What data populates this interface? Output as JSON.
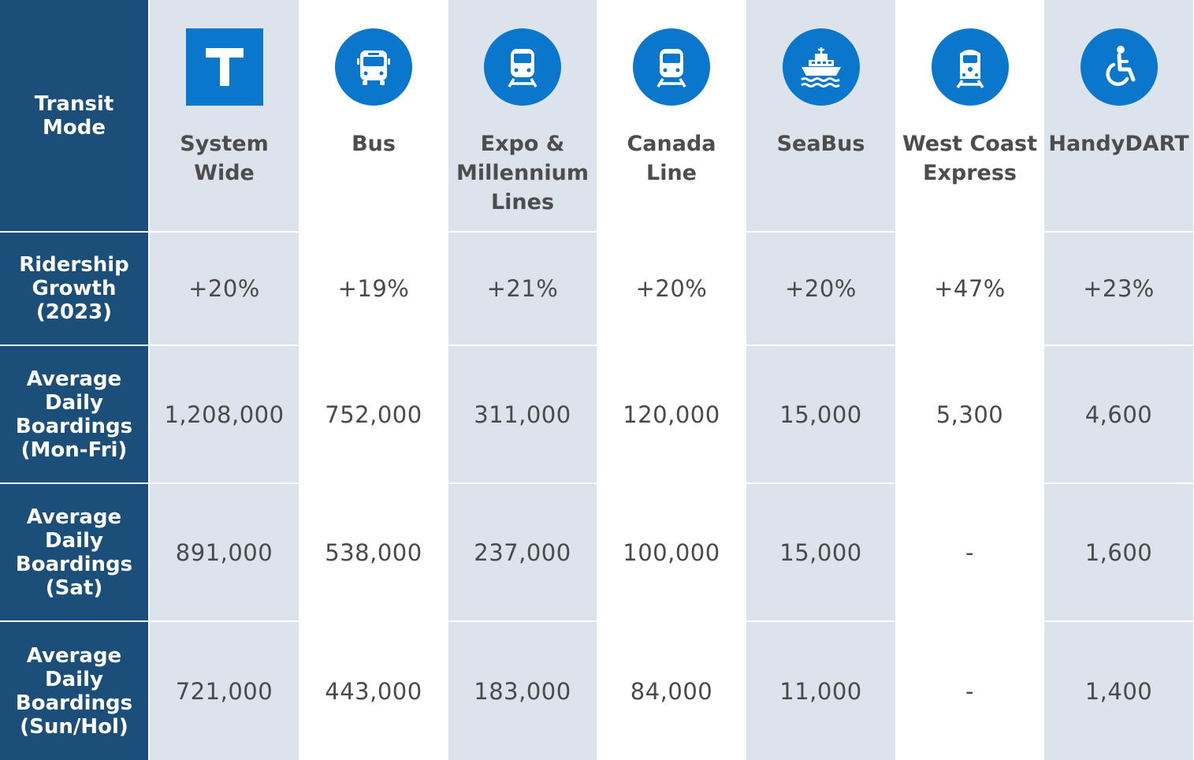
{
  "corner_label": "Transit\nMode",
  "colors": {
    "header_blue": "#1b4f7a",
    "icon_blue": "#0a77cc",
    "shade": "#dde3ec"
  },
  "modes": [
    {
      "label": "System\nWide",
      "icon": "transit-t-icon"
    },
    {
      "label": "Bus",
      "icon": "bus-icon"
    },
    {
      "label": "Expo &\nMillennium\nLines",
      "icon": "skytrain-icon"
    },
    {
      "label": "Canada\nLine",
      "icon": "canada-line-train-icon"
    },
    {
      "label": "SeaBus",
      "icon": "seabus-ferry-icon"
    },
    {
      "label": "West Coast\nExpress",
      "icon": "commuter-train-icon"
    },
    {
      "label": "HandyDART",
      "icon": "wheelchair-icon"
    }
  ],
  "rows": [
    {
      "label": "Ridership\nGrowth\n(2023)",
      "values": [
        "+20%",
        "+19%",
        "+21%",
        "+20%",
        "+20%",
        "+47%",
        "+23%"
      ]
    },
    {
      "label": "Average\nDaily\nBoardings\n(Mon-Fri)",
      "values": [
        "1,208,000",
        "752,000",
        "311,000",
        "120,000",
        "15,000",
        "5,300",
        "4,600"
      ]
    },
    {
      "label": "Average\nDaily\nBoardings\n(Sat)",
      "values": [
        "891,000",
        "538,000",
        "237,000",
        "100,000",
        "15,000",
        "-",
        "1,600"
      ]
    },
    {
      "label": "Average\nDaily\nBoardings\n(Sun/Hol)",
      "values": [
        "721,000",
        "443,000",
        "183,000",
        "84,000",
        "11,000",
        "-",
        "1,400"
      ]
    }
  ]
}
